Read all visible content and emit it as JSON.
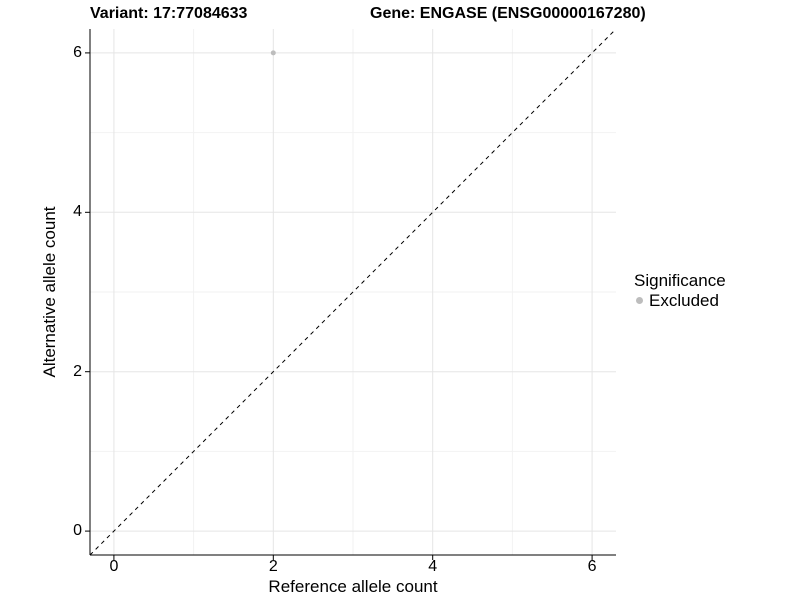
{
  "titles": {
    "variant": "Variant: 17:77084633",
    "gene": "Gene: ENGASE (ENSG00000167280)"
  },
  "chart_data": {
    "type": "scatter",
    "xlabel": "Reference allele count",
    "ylabel": "Alternative allele count",
    "xlim": [
      -0.3,
      6.3
    ],
    "ylim": [
      -0.3,
      6.3
    ],
    "xticks": [
      0,
      2,
      4,
      6
    ],
    "yticks": [
      0,
      2,
      4,
      6
    ],
    "xticks_minor": [
      1,
      3,
      5
    ],
    "yticks_minor": [
      1,
      3,
      5
    ],
    "grid": true,
    "points": [
      {
        "x": 2,
        "y": 6,
        "series": "Excluded"
      }
    ],
    "identity_line": {
      "slope": 1,
      "intercept": 0,
      "linetype": "dashed"
    },
    "legend_position": "right"
  },
  "legend": {
    "title": "Significance",
    "items": [
      {
        "label": "Excluded",
        "color": "#bdbdbd"
      }
    ]
  },
  "colors": {
    "background": "#ffffff",
    "text": "#000000",
    "axis": "#000000",
    "grid_major": "#e5e5e5",
    "grid_minor": "#f2f2f2",
    "identity_line": "#000000",
    "excluded_point": "#bdbdbd"
  }
}
